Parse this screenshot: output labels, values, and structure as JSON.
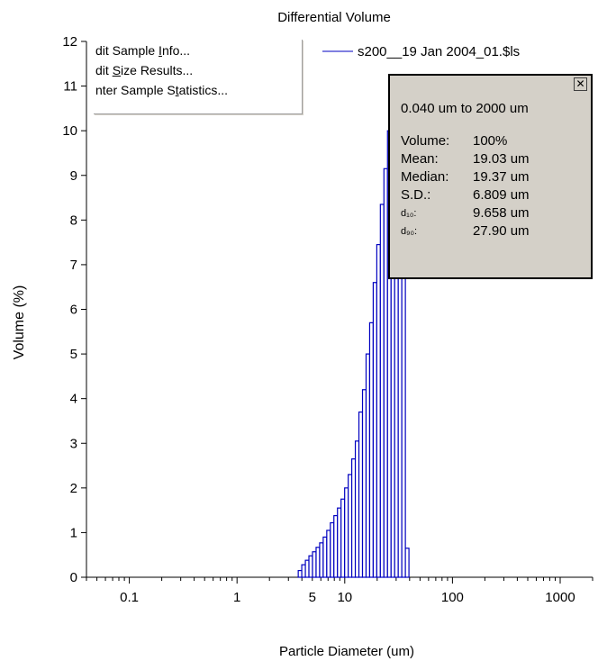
{
  "chart_data": {
    "type": "bar",
    "title": "Differential Volume",
    "xlabel": "Particle Diameter (um)",
    "ylabel": "Volume (%)",
    "x_scale": "log",
    "xlim": [
      0.04,
      2000
    ],
    "ylim": [
      0,
      12
    ],
    "x_ticks": [
      0.1,
      1,
      5,
      10,
      100,
      1000
    ],
    "x_tick_labels": [
      "0.1",
      "1",
      "5",
      "10",
      "100",
      "1000"
    ],
    "y_ticks": [
      0,
      1,
      2,
      3,
      4,
      5,
      6,
      7,
      8,
      9,
      10,
      11,
      12
    ],
    "legend": {
      "position": "top-right",
      "series_name": "s200__19 Jan 2004_01.$ls"
    },
    "series": [
      {
        "name": "s200__19 Jan 2004_01.$ls",
        "color": "#0000c0",
        "bin_edges": [
          3.7,
          3.99,
          4.31,
          4.65,
          5.02,
          5.42,
          5.85,
          6.31,
          6.81,
          7.35,
          7.93,
          8.56,
          9.24,
          9.98,
          10.77,
          11.62,
          12.54,
          13.54,
          14.62,
          15.78,
          17.03,
          18.38,
          19.84,
          21.41,
          23.11,
          24.95,
          26.93,
          29.07,
          31.37,
          33.86,
          36.55,
          39.45
        ],
        "values": [
          0.15,
          0.28,
          0.38,
          0.48,
          0.57,
          0.67,
          0.77,
          0.9,
          1.05,
          1.22,
          1.38,
          1.55,
          1.75,
          2.0,
          2.3,
          2.65,
          3.05,
          3.7,
          4.2,
          5.0,
          5.7,
          6.6,
          7.45,
          8.35,
          9.15,
          10.0,
          10.9,
          11.1,
          11.0,
          9.3,
          0.65
        ]
      }
    ]
  },
  "context_menu": {
    "items": [
      {
        "pre": "dit Sample ",
        "key": "I",
        "post": "nfo..."
      },
      {
        "pre": "dit ",
        "key": "S",
        "post": "ize Results..."
      },
      {
        "pre": "nter Sample S",
        "key": "t",
        "post": "atistics..."
      }
    ]
  },
  "stats_box": {
    "close_glyph": "✕",
    "range": "0.040 um to 2000 um",
    "rows": [
      {
        "label": "Volume:",
        "value": "100%"
      },
      {
        "label": "Mean:",
        "value": "19.03 um"
      },
      {
        "label": "Median:",
        "value": "19.37 um"
      },
      {
        "label": "S.D.:",
        "value": "6.809 um"
      },
      {
        "label": "d₁₀:",
        "value": "9.658 um"
      },
      {
        "label": "d₉₀:",
        "value": "27.90 um"
      }
    ]
  }
}
